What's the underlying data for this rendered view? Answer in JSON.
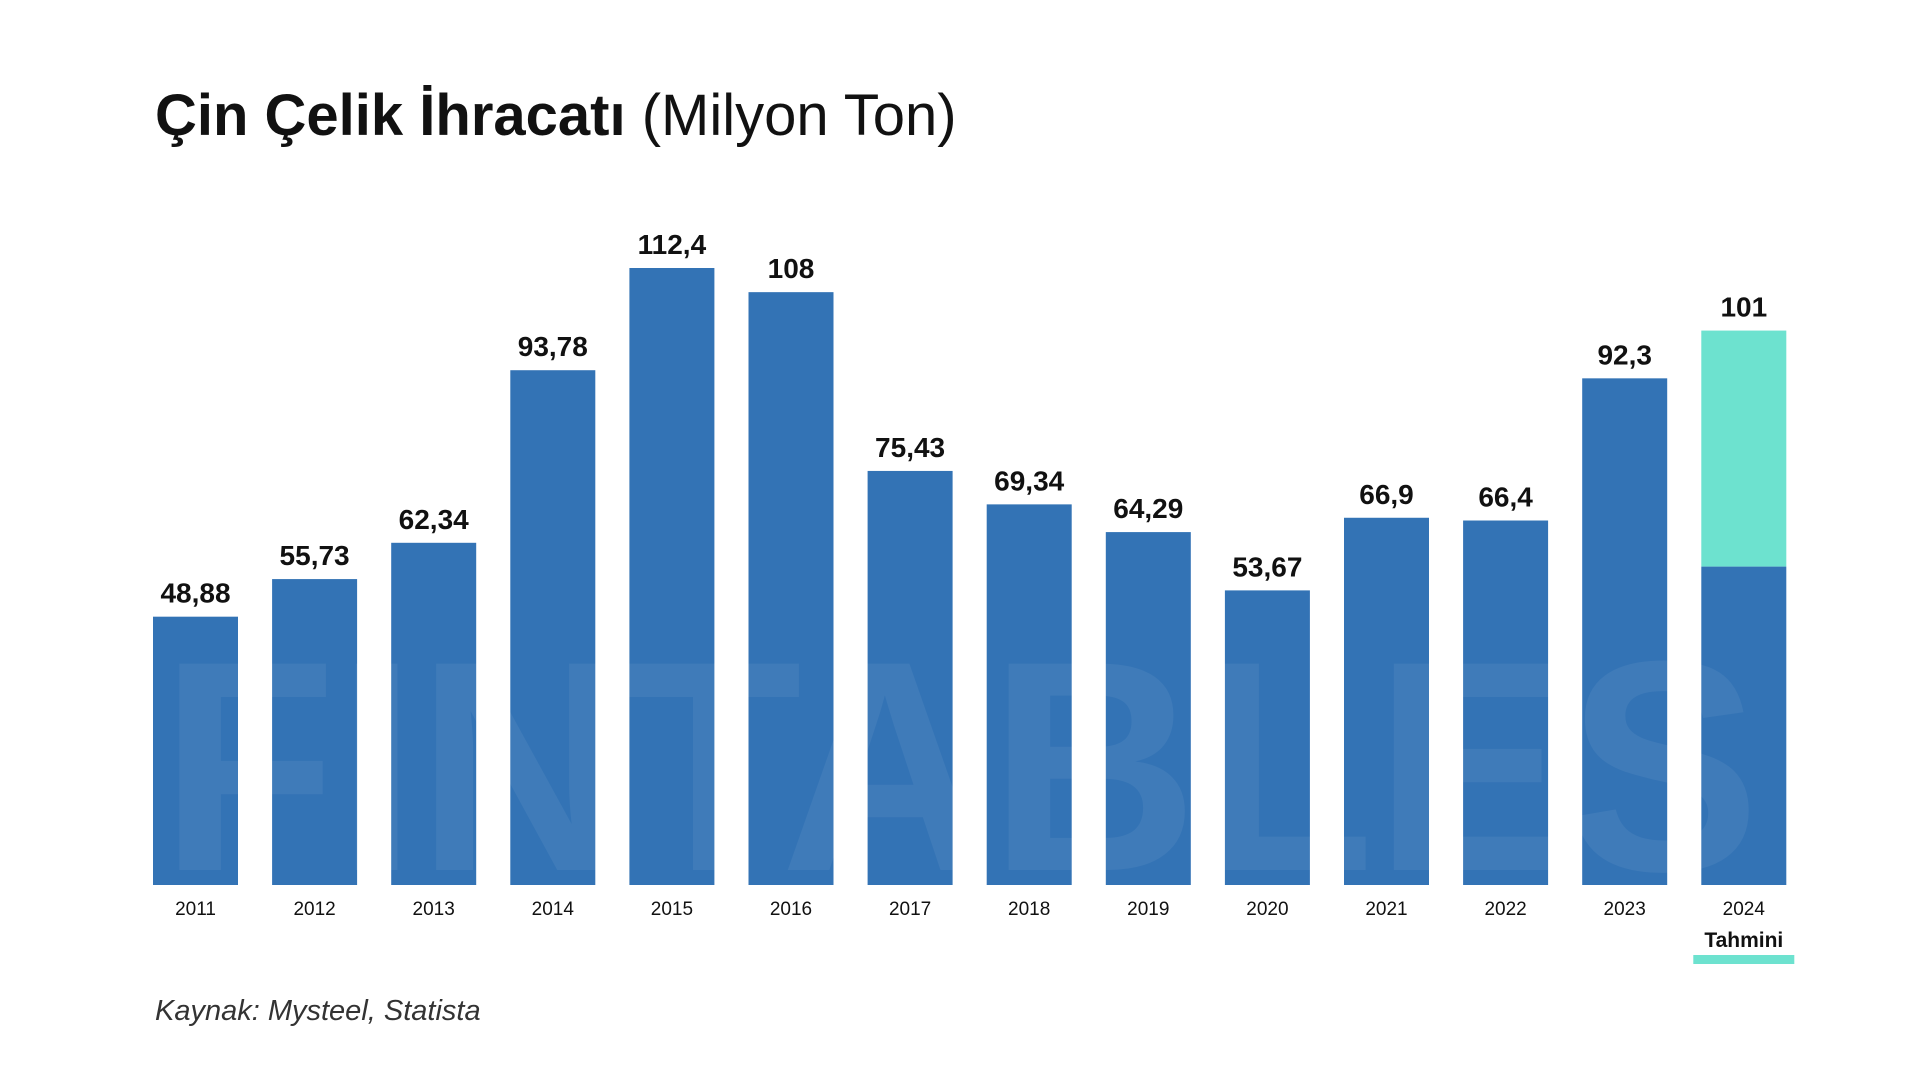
{
  "title": {
    "main": "Çin Çelik İhracatı",
    "unit": "(Milyon Ton)"
  },
  "source": "Kaynak: Mysteel, Statista",
  "watermark": "FINTABLES",
  "colors": {
    "bar": "#3373b5",
    "forecast": "#6de2cf",
    "text": "#111111",
    "watermark": "#ffffff"
  },
  "chart_data": {
    "type": "bar",
    "title": "Çin Çelik İhracatı (Milyon Ton)",
    "xlabel": "",
    "ylabel": "",
    "categories": [
      "2011",
      "2012",
      "2013",
      "2014",
      "2015",
      "2016",
      "2017",
      "2018",
      "2019",
      "2020",
      "2021",
      "2022",
      "2023",
      "2024"
    ],
    "values": [
      48.88,
      55.73,
      62.34,
      93.78,
      112.4,
      108,
      75.43,
      69.34,
      64.29,
      53.67,
      66.9,
      66.4,
      92.3,
      101
    ],
    "value_labels": [
      "48,88",
      "55,73",
      "62,34",
      "93,78",
      "112,4",
      "108",
      "75,43",
      "69,34",
      "64,29",
      "53,67",
      "66,9",
      "66,4",
      "92,3",
      "101"
    ],
    "forecast": {
      "category": "2024",
      "base_value": 58,
      "label": "Tahmini"
    },
    "ylim": [
      0,
      112.4
    ],
    "grid": false,
    "legend": "none"
  }
}
